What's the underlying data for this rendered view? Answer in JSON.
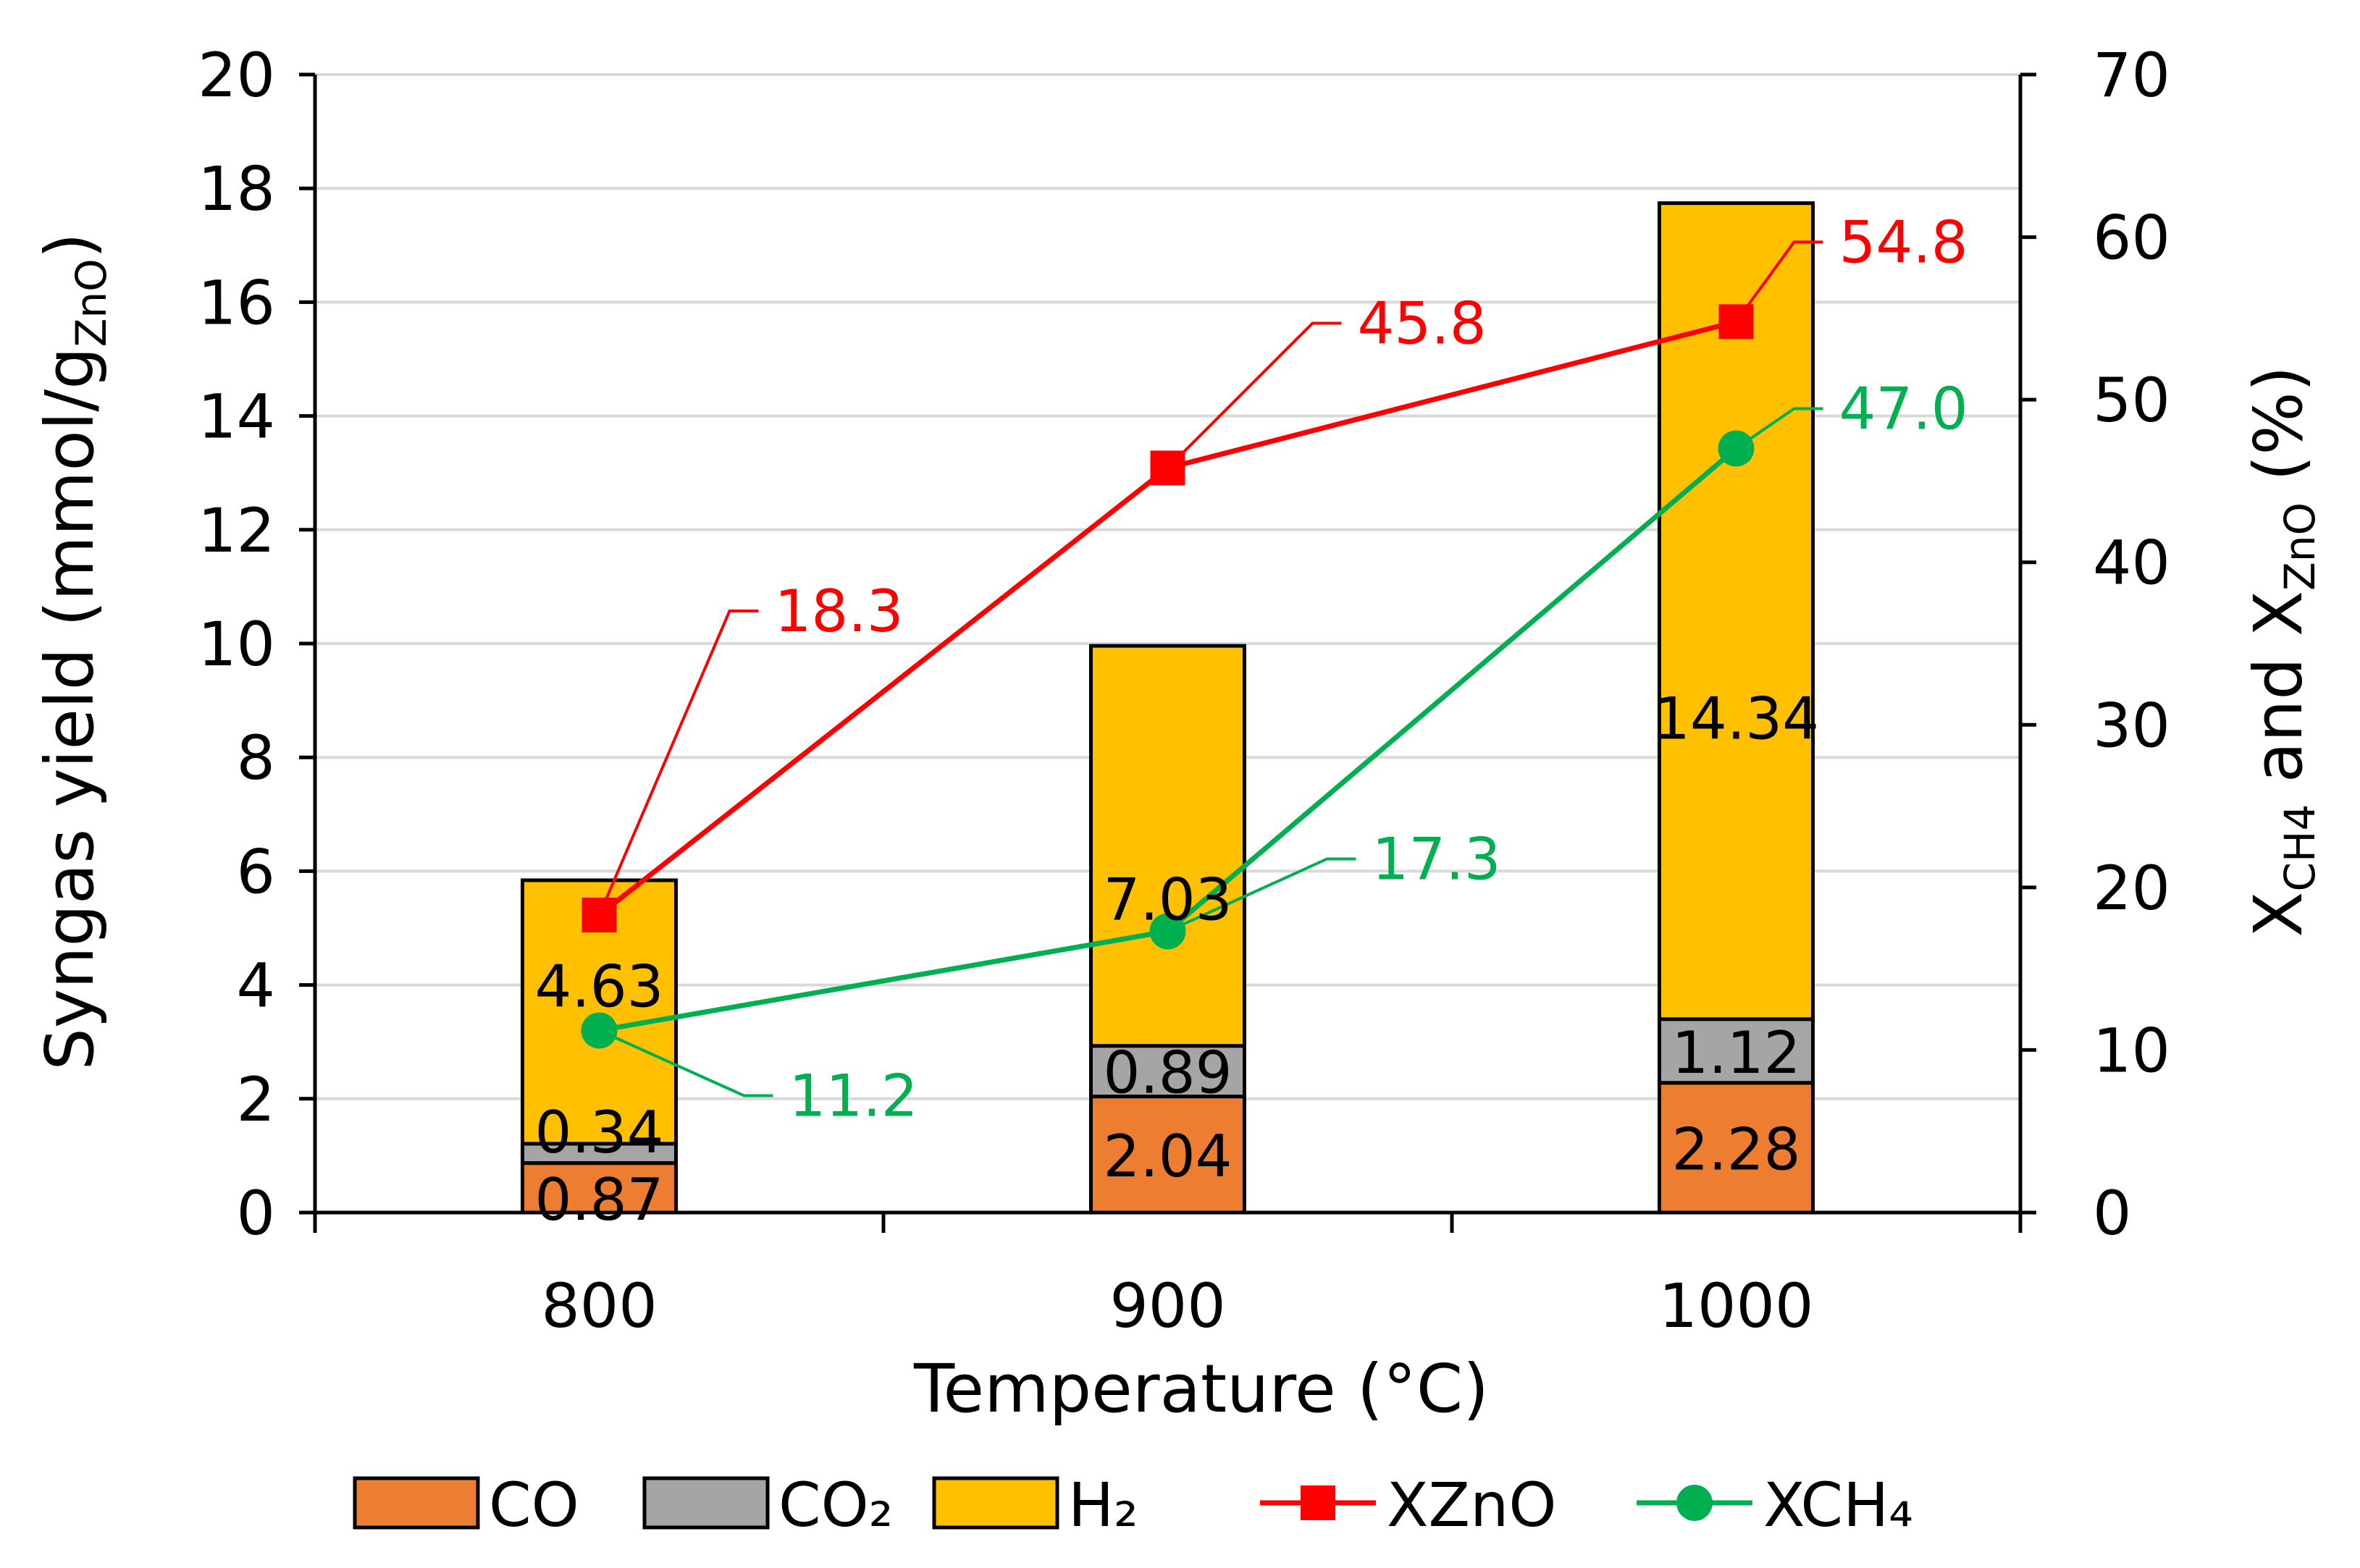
{
  "chart_data": {
    "type": "bar",
    "subtype": "stacked bar with dual-axis lines",
    "categories": [
      "800",
      "900",
      "1000"
    ],
    "xlabel": "Temperature (°C)",
    "ylabel_left": "Syngas yield (mmol/g",
    "ylabel_left_sub": "ZnO",
    "ylabel_left_end": ")",
    "ylabel_right_parts": [
      "X",
      "CH4",
      " and X",
      "ZnO",
      " (%)"
    ],
    "ylim_left": [
      0,
      20
    ],
    "yticks_left": [
      "0",
      "2",
      "4",
      "6",
      "8",
      "10",
      "12",
      "14",
      "16",
      "18",
      "20"
    ],
    "ylim_right": [
      0,
      70
    ],
    "yticks_right": [
      "0",
      "10",
      "20",
      "30",
      "40",
      "50",
      "60",
      "70"
    ],
    "gridlines": true,
    "bar_series": [
      {
        "name": "CO",
        "legend": "CO",
        "color": "#ED7D31",
        "values": [
          0.87,
          2.04,
          2.28
        ],
        "labels": [
          "0.87",
          "2.04",
          "2.28"
        ]
      },
      {
        "name": "CO2",
        "legend": "CO₂",
        "color": "#A5A5A5",
        "values": [
          0.34,
          0.89,
          1.12
        ],
        "labels": [
          "0.34",
          "0.89",
          "1.12"
        ]
      },
      {
        "name": "H2",
        "legend": "H₂",
        "color": "#FFC000",
        "values": [
          4.63,
          7.03,
          14.34
        ],
        "labels": [
          "4.63",
          "7.03",
          "14.34"
        ]
      }
    ],
    "line_series": [
      {
        "name": "XZnO",
        "legend": "XZnO",
        "color": "#FF0000",
        "marker": "square",
        "axis": "right",
        "values": [
          18.3,
          45.8,
          54.8
        ],
        "labels": [
          "18.3",
          "45.8",
          "54.8"
        ]
      },
      {
        "name": "XCH4",
        "legend": "XCH₄",
        "color": "#00B050",
        "marker": "circle",
        "axis": "right",
        "values": [
          11.2,
          17.3,
          47.0
        ],
        "labels": [
          "11.2",
          "17.3",
          "47.0"
        ]
      }
    ],
    "legend_position": "bottom"
  }
}
